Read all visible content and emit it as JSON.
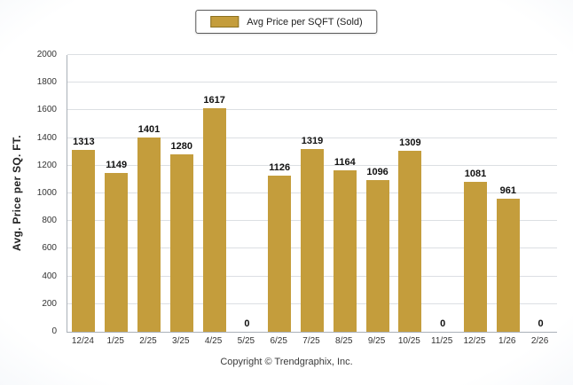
{
  "page": {
    "footer": "Copyright © Trendgraphix, Inc."
  },
  "legend": {
    "label": "Avg Price per SQFT (Sold)",
    "swatch_color": "#C49D3C"
  },
  "chart_data": {
    "type": "bar",
    "title": "",
    "series_name": "Avg Price per SQFT (Sold)",
    "categories": [
      "12/24",
      "1/25",
      "2/25",
      "3/25",
      "4/25",
      "5/25",
      "6/25",
      "7/25",
      "8/25",
      "9/25",
      "10/25",
      "11/25",
      "12/25",
      "1/26",
      "2/26"
    ],
    "values": [
      1313,
      1149,
      1401,
      1280,
      1617,
      0,
      1126,
      1319,
      1164,
      1096,
      1309,
      0,
      1081,
      961,
      0
    ],
    "xlabel": "",
    "ylabel": "Avg. Price per SQ. FT.",
    "ylim": [
      0,
      2000
    ],
    "ytick_step": 200,
    "grid": true,
    "legend_position": "top",
    "bar_color": "#C49D3C"
  }
}
